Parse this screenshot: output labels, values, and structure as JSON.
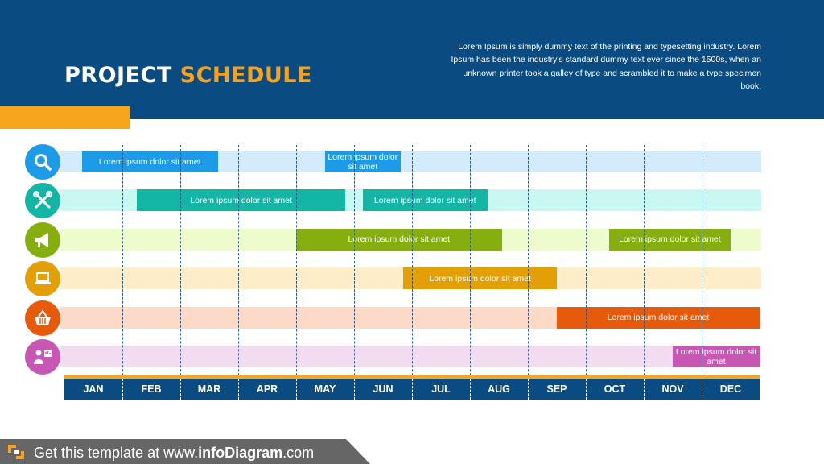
{
  "header": {
    "title_main": "PROJECT",
    "title_accent": "SCHEDULE",
    "description": "Lorem Ipsum is simply dummy text of the printing and typesetting industry. Lorem Ipsum has been the industry's standard dummy text ever since the 1500s, when an unknown printer took a galley of type and scrambled it to make a type specimen book."
  },
  "months": [
    "JAN",
    "FEB",
    "MAR",
    "APR",
    "MAY",
    "JUN",
    "JUL",
    "AUG",
    "SEP",
    "OCT",
    "NOV",
    "DEC"
  ],
  "rows": [
    {
      "icon": "search-icon",
      "color": "#1e9be8",
      "light": "#d3ebfb",
      "tasks": [
        {
          "label": "Lorem ipsum dolor sit amet",
          "start_month": 0.3,
          "end_month": 2.65
        },
        {
          "label": "Lorem ipsum dolor sit amet",
          "start_month": 4.5,
          "end_month": 5.8
        }
      ]
    },
    {
      "icon": "tools-icon",
      "color": "#13b5a5",
      "light": "#c9f7f1",
      "tasks": [
        {
          "label": "Lorem ipsum dolor sit amet",
          "start_month": 1.25,
          "end_month": 4.85
        },
        {
          "label": "Lorem ipsum dolor sit amet",
          "start_month": 5.15,
          "end_month": 7.3
        }
      ]
    },
    {
      "icon": "megaphone-icon",
      "color": "#85ae0e",
      "light": "#edfbcd",
      "tasks": [
        {
          "label": "Lorem ipsum dolor sit amet",
          "start_month": 4.0,
          "end_month": 7.55
        },
        {
          "label": "Lorem ipsum dolor sit amet",
          "start_month": 9.4,
          "end_month": 11.5
        }
      ]
    },
    {
      "icon": "laptop-icon",
      "color": "#e2a006",
      "light": "#fdedc9",
      "tasks": [
        {
          "label": "Lorem ipsum dolor sit amet",
          "start_month": 5.85,
          "end_month": 8.5
        }
      ]
    },
    {
      "icon": "shopping-basket-icon",
      "color": "#e55a0b",
      "light": "#fddac7",
      "tasks": [
        {
          "label": "Lorem ipsum dolor sit amet",
          "start_month": 8.5,
          "end_month": 12.0
        }
      ]
    },
    {
      "icon": "presenter-icon",
      "color": "#c857b4",
      "light": "#f3dcf0",
      "tasks": [
        {
          "label": "Lorem ipsum dolor sit amet",
          "start_month": 10.5,
          "end_month": 12.0
        }
      ]
    }
  ],
  "footer": {
    "prefix": "Get this template at www.",
    "brand": "infoDiagram",
    "suffix": ".com"
  }
}
